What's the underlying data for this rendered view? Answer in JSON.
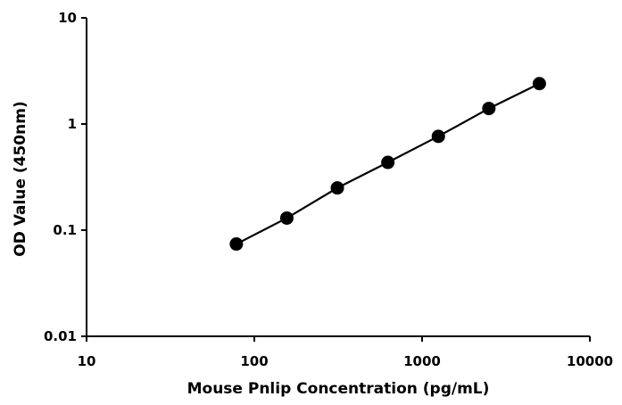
{
  "chart_data": {
    "type": "line",
    "title": "",
    "xlabel": "Mouse Pnlip Concentration (pg/mL)",
    "ylabel": "OD Value (450nm)",
    "x_scale": "log",
    "y_scale": "log",
    "xlim": [
      10,
      10000
    ],
    "ylim": [
      0.01,
      10
    ],
    "x_ticks": [
      "10",
      "100",
      "1000",
      "10000"
    ],
    "y_ticks": [
      "0.01",
      "0.1",
      "1",
      "10"
    ],
    "grid": false,
    "legend": "none",
    "series": [
      {
        "x": [
          78.13,
          156.25,
          312.5,
          625,
          1250,
          2500,
          5000
        ],
        "y": [
          0.074,
          0.13,
          0.25,
          0.435,
          0.765,
          1.4,
          2.4
        ],
        "marker": "circle",
        "color": "#000000"
      }
    ]
  }
}
